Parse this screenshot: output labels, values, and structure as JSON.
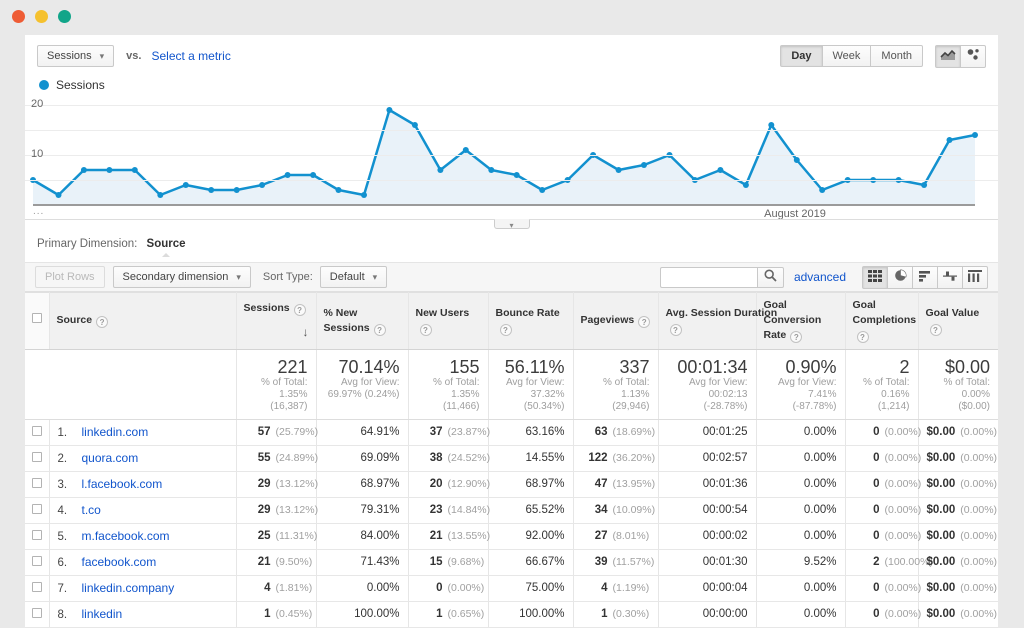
{
  "window": {
    "dot_colors": [
      "#ee5c35",
      "#f5c12e",
      "#11a589"
    ]
  },
  "colors": {
    "accent_link": "#1155cc",
    "chart_line": "#1291cf",
    "chart_fill": "#e9f2f9"
  },
  "metric_bar": {
    "metric_selector_label": "Sessions",
    "vs_label": "vs.",
    "select_metric_label": "Select a metric",
    "granularity": [
      "Day",
      "Week",
      "Month"
    ],
    "granularity_active": "Day"
  },
  "legend": {
    "label": "Sessions"
  },
  "chart_data": {
    "type": "line",
    "title": "Sessions",
    "x_axis_label": "August 2019",
    "ellipsis_label": "...",
    "ylim": [
      0,
      20
    ],
    "yticks": [
      10,
      20
    ],
    "gridlines": [
      5,
      10,
      15,
      20
    ],
    "grid": true,
    "legend_position": "top-left",
    "series": [
      {
        "name": "Sessions",
        "color": "#1291cf",
        "fill": "#e9f2f9",
        "values": [
          5,
          2,
          7,
          7,
          7,
          2,
          4,
          3,
          3,
          4,
          6,
          6,
          3,
          2,
          19,
          16,
          7,
          11,
          7,
          6,
          3,
          5,
          10,
          7,
          8,
          10,
          5,
          7,
          4,
          16,
          9,
          3,
          5,
          5,
          5,
          4,
          13,
          14
        ]
      }
    ]
  },
  "primary_dimension": {
    "label": "Primary Dimension:",
    "active_tab": "Source"
  },
  "toolbar": {
    "plot_rows_label": "Plot Rows",
    "secondary_dimension_label": "Secondary dimension",
    "sort_type_label": "Sort Type:",
    "sort_type_value": "Default",
    "search_value": "",
    "advanced_label": "advanced"
  },
  "table": {
    "columns": [
      {
        "key": "checkbox",
        "label": "",
        "type": "checkbox"
      },
      {
        "key": "source",
        "label": "Source",
        "help": true,
        "align": "left"
      },
      {
        "key": "sessions",
        "label": "Sessions",
        "help": true,
        "sorted": "desc",
        "strong": true
      },
      {
        "key": "new_sessions_pct",
        "label": "% New Sessions",
        "help": true
      },
      {
        "key": "new_users",
        "label": "New Users",
        "help": true,
        "strong": true
      },
      {
        "key": "bounce_rate",
        "label": "Bounce Rate",
        "help": true
      },
      {
        "key": "pageviews",
        "label": "Pageviews",
        "help": true,
        "strong": true
      },
      {
        "key": "avg_session_duration",
        "label": "Avg. Session Duration",
        "help": true,
        "nowrap": true
      },
      {
        "key": "goal_conversion_rate",
        "label": "Goal Conversion Rate",
        "help": true
      },
      {
        "key": "goal_completions",
        "label": "Goal Completions",
        "help": true,
        "strong": true
      },
      {
        "key": "goal_value",
        "label": "Goal Value",
        "help": true,
        "strong": true
      }
    ],
    "summary": [
      {
        "value": "221",
        "sub1": "% of Total: 1.35%",
        "sub2": "(16,387)"
      },
      {
        "value": "70.14%",
        "sub1": "Avg for View:",
        "sub2": "69.97% (0.24%)"
      },
      {
        "value": "155",
        "sub1": "% of Total: 1.35%",
        "sub2": "(11,466)"
      },
      {
        "value": "56.11%",
        "sub1": "Avg for View: 37.32%",
        "sub2": "(50.34%)"
      },
      {
        "value": "337",
        "sub1": "% of Total: 1.13%",
        "sub2": "(29,946)"
      },
      {
        "value": "00:01:34",
        "sub1": "Avg for View: 00:02:13",
        "sub2": "(-28.78%)"
      },
      {
        "value": "0.90%",
        "sub1": "Avg for View: 7.41%",
        "sub2": "(-87.78%)"
      },
      {
        "value": "2",
        "sub1": "% of Total: 0.16%",
        "sub2": "(1,214)"
      },
      {
        "value": "$0.00",
        "sub1": "% of Total: 0.00%",
        "sub2": "($0.00)"
      }
    ],
    "rows": [
      {
        "rank": "1.",
        "source": "linkedin.com",
        "metrics": [
          {
            "v": "57",
            "s": "(25.79%)"
          },
          {
            "v": "64.91%"
          },
          {
            "v": "37",
            "s": "(23.87%)"
          },
          {
            "v": "63.16%"
          },
          {
            "v": "63",
            "s": "(18.69%)"
          },
          {
            "v": "00:01:25"
          },
          {
            "v": "0.00%"
          },
          {
            "v": "0",
            "s": "(0.00%)"
          },
          {
            "v": "$0.00",
            "s": "(0.00%)"
          }
        ]
      },
      {
        "rank": "2.",
        "source": "quora.com",
        "metrics": [
          {
            "v": "55",
            "s": "(24.89%)"
          },
          {
            "v": "69.09%"
          },
          {
            "v": "38",
            "s": "(24.52%)"
          },
          {
            "v": "14.55%"
          },
          {
            "v": "122",
            "s": "(36.20%)"
          },
          {
            "v": "00:02:57"
          },
          {
            "v": "0.00%"
          },
          {
            "v": "0",
            "s": "(0.00%)"
          },
          {
            "v": "$0.00",
            "s": "(0.00%)"
          }
        ]
      },
      {
        "rank": "3.",
        "source": "l.facebook.com",
        "metrics": [
          {
            "v": "29",
            "s": "(13.12%)"
          },
          {
            "v": "68.97%"
          },
          {
            "v": "20",
            "s": "(12.90%)"
          },
          {
            "v": "68.97%"
          },
          {
            "v": "47",
            "s": "(13.95%)"
          },
          {
            "v": "00:01:36"
          },
          {
            "v": "0.00%"
          },
          {
            "v": "0",
            "s": "(0.00%)"
          },
          {
            "v": "$0.00",
            "s": "(0.00%)"
          }
        ]
      },
      {
        "rank": "4.",
        "source": "t.co",
        "metrics": [
          {
            "v": "29",
            "s": "(13.12%)"
          },
          {
            "v": "79.31%"
          },
          {
            "v": "23",
            "s": "(14.84%)"
          },
          {
            "v": "65.52%"
          },
          {
            "v": "34",
            "s": "(10.09%)"
          },
          {
            "v": "00:00:54"
          },
          {
            "v": "0.00%"
          },
          {
            "v": "0",
            "s": "(0.00%)"
          },
          {
            "v": "$0.00",
            "s": "(0.00%)"
          }
        ]
      },
      {
        "rank": "5.",
        "source": "m.facebook.com",
        "metrics": [
          {
            "v": "25",
            "s": "(11.31%)"
          },
          {
            "v": "84.00%"
          },
          {
            "v": "21",
            "s": "(13.55%)"
          },
          {
            "v": "92.00%"
          },
          {
            "v": "27",
            "s": "(8.01%)"
          },
          {
            "v": "00:00:02"
          },
          {
            "v": "0.00%"
          },
          {
            "v": "0",
            "s": "(0.00%)"
          },
          {
            "v": "$0.00",
            "s": "(0.00%)"
          }
        ]
      },
      {
        "rank": "6.",
        "source": "facebook.com",
        "metrics": [
          {
            "v": "21",
            "s": "(9.50%)"
          },
          {
            "v": "71.43%"
          },
          {
            "v": "15",
            "s": "(9.68%)"
          },
          {
            "v": "66.67%"
          },
          {
            "v": "39",
            "s": "(11.57%)"
          },
          {
            "v": "00:01:30"
          },
          {
            "v": "9.52%"
          },
          {
            "v": "2",
            "s": "(100.00%)"
          },
          {
            "v": "$0.00",
            "s": "(0.00%)"
          }
        ]
      },
      {
        "rank": "7.",
        "source": "linkedin.company",
        "metrics": [
          {
            "v": "4",
            "s": "(1.81%)"
          },
          {
            "v": "0.00%"
          },
          {
            "v": "0",
            "s": "(0.00%)"
          },
          {
            "v": "75.00%"
          },
          {
            "v": "4",
            "s": "(1.19%)"
          },
          {
            "v": "00:00:04"
          },
          {
            "v": "0.00%"
          },
          {
            "v": "0",
            "s": "(0.00%)"
          },
          {
            "v": "$0.00",
            "s": "(0.00%)"
          }
        ]
      },
      {
        "rank": "8.",
        "source": "linkedin",
        "metrics": [
          {
            "v": "1",
            "s": "(0.45%)"
          },
          {
            "v": "100.00%"
          },
          {
            "v": "1",
            "s": "(0.65%)"
          },
          {
            "v": "100.00%"
          },
          {
            "v": "1",
            "s": "(0.30%)"
          },
          {
            "v": "00:00:00"
          },
          {
            "v": "0.00%"
          },
          {
            "v": "0",
            "s": "(0.00%)"
          },
          {
            "v": "$0.00",
            "s": "(0.00%)"
          }
        ]
      }
    ]
  }
}
